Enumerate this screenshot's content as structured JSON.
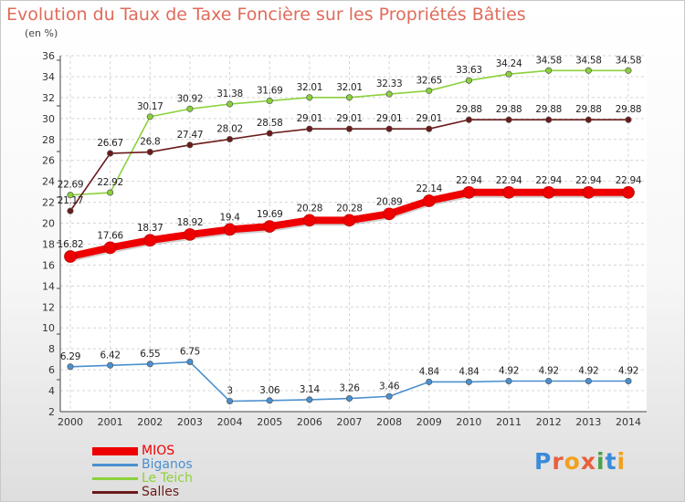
{
  "page": {
    "title": "Evolution du Taux de Taxe Foncière sur les Propriétés Bâties",
    "unit": "(en %)"
  },
  "brand": {
    "text": "Proxiti",
    "letter_colors": [
      "#3b8bd8",
      "#e85f3c",
      "#f2a01e",
      "#e85f3c",
      "#4aa14a",
      "#3b8bd8",
      "#f2a01e"
    ]
  },
  "chart_data": {
    "type": "line",
    "title": "Evolution du Taux de Taxe Foncière sur les Propriétés Bâties",
    "ylabel": "(en %)",
    "xlabel": "",
    "x": [
      2000,
      2001,
      2002,
      2003,
      2004,
      2005,
      2006,
      2007,
      2008,
      2009,
      2010,
      2011,
      2012,
      2013,
      2014
    ],
    "ylim": [
      2,
      36
    ],
    "yticks": [
      2,
      4,
      6,
      8,
      10,
      12,
      14,
      16,
      18,
      20,
      22,
      24,
      26,
      28,
      30,
      32,
      34,
      36
    ],
    "grid": true,
    "legend_position": "bottom-left",
    "series": [
      {
        "name": "MIOS",
        "color": "#ee0000",
        "emphasis": true,
        "values": [
          16.82,
          17.66,
          18.37,
          18.92,
          19.4,
          19.69,
          20.28,
          20.28,
          20.89,
          22.14,
          22.94,
          22.94,
          22.94,
          22.94,
          22.94
        ],
        "labels": [
          "16.82",
          "17.66",
          "18.37",
          "18.92",
          "19.4",
          "19.69",
          "20.28",
          "20.28",
          "20.89",
          "22.14",
          "22.94",
          "22.94",
          "22.94",
          "22.94",
          "22.94"
        ]
      },
      {
        "name": "Biganos",
        "color": "#4a90cf",
        "emphasis": false,
        "values": [
          6.29,
          6.42,
          6.55,
          6.75,
          3,
          3.06,
          3.14,
          3.26,
          3.46,
          4.84,
          4.84,
          4.92,
          4.92,
          4.92,
          4.92
        ],
        "labels": [
          "6.29",
          "6.42",
          "6.55",
          "6.75",
          "3",
          "3.06",
          "3.14",
          "3.26",
          "3.46",
          "4.84",
          "4.84",
          "4.92",
          "4.92",
          "4.92",
          "4.92"
        ]
      },
      {
        "name": "Le Teich",
        "color": "#8bd13c",
        "emphasis": false,
        "values": [
          22.69,
          22.92,
          30.17,
          30.92,
          31.38,
          31.69,
          32.01,
          32.01,
          32.33,
          32.65,
          33.63,
          34.24,
          34.58,
          34.58,
          34.58
        ],
        "labels": [
          "22.69",
          "22.92",
          "30.17",
          "30.92",
          "31.38",
          "31.69",
          "32.01",
          "32.01",
          "32.33",
          "32.65",
          "33.63",
          "34.24",
          "34.58",
          "34.58",
          "34.58"
        ]
      },
      {
        "name": "Salles",
        "color": "#6b1a1a",
        "emphasis": false,
        "values": [
          21.17,
          26.67,
          26.8,
          27.47,
          28.02,
          28.58,
          29.01,
          29.01,
          29.01,
          29.01,
          29.88,
          29.88,
          29.88,
          29.88,
          29.88
        ],
        "labels": [
          "21.17",
          "26.67",
          "26.8",
          "27.47",
          "28.02",
          "28.58",
          "29.01",
          "29.01",
          "29.01",
          "29.01",
          "29.88",
          "29.88",
          "29.88",
          "29.88",
          "29.88"
        ]
      }
    ]
  }
}
